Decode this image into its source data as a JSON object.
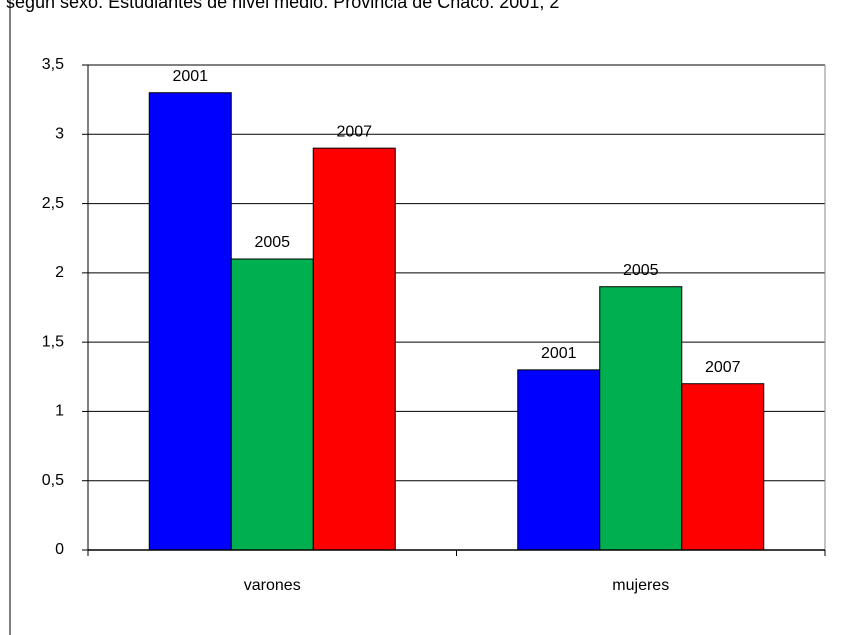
{
  "chart_data": {
    "type": "bar",
    "title": "según sexo. Estudiantes de nivel medio. Provincia de Chaco. 2001, 2",
    "categories": [
      "varones",
      "mujeres"
    ],
    "series": [
      {
        "name": "2001",
        "color": "#0000ff",
        "values": [
          3.3,
          1.3
        ]
      },
      {
        "name": "2005",
        "color": "#00b050",
        "values": [
          2.1,
          1.9
        ]
      },
      {
        "name": "2007",
        "color": "#ff0000",
        "values": [
          2.9,
          1.2
        ]
      }
    ],
    "ylim": [
      0,
      3.5
    ],
    "yticks": [
      0,
      {
        "value": 0.5,
        "label": "0,5"
      },
      1,
      {
        "value": 1.5,
        "label": "1,5"
      },
      2,
      {
        "value": 2.5,
        "label": "2,5"
      },
      3,
      {
        "value": 3.5,
        "label": "3,5"
      }
    ],
    "grid": true
  }
}
